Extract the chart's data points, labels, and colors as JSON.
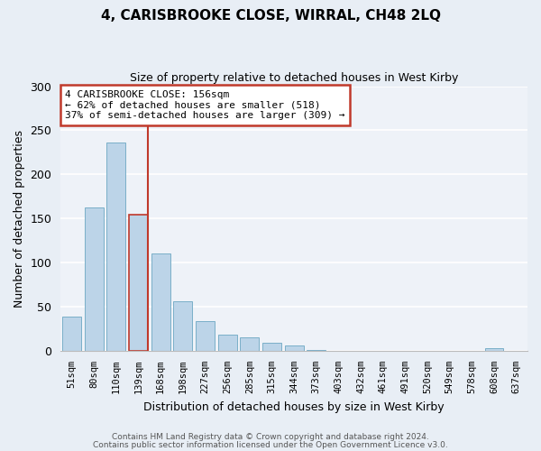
{
  "title": "4, CARISBROOKE CLOSE, WIRRAL, CH48 2LQ",
  "subtitle": "Size of property relative to detached houses in West Kirby",
  "bar_values": [
    39,
    163,
    236,
    154,
    110,
    56,
    34,
    18,
    15,
    9,
    6,
    1,
    0,
    0,
    0,
    0,
    0,
    0,
    0,
    3,
    0
  ],
  "categories": [
    "51sqm",
    "80sqm",
    "110sqm",
    "139sqm",
    "168sqm",
    "198sqm",
    "227sqm",
    "256sqm",
    "285sqm",
    "315sqm",
    "344sqm",
    "373sqm",
    "403sqm",
    "432sqm",
    "461sqm",
    "491sqm",
    "520sqm",
    "549sqm",
    "578sqm",
    "608sqm",
    "637sqm"
  ],
  "bar_color": "#bcd4e8",
  "bar_edge_color": "#7aafc8",
  "highlight_bar_index": 3,
  "highlight_bar_edge_color": "#c0392b",
  "ylabel": "Number of detached properties",
  "xlabel": "Distribution of detached houses by size in West Kirby",
  "ylim": [
    0,
    300
  ],
  "yticks": [
    0,
    50,
    100,
    150,
    200,
    250,
    300
  ],
  "annotation_title": "4 CARISBROOKE CLOSE: 156sqm",
  "annotation_line1": "← 62% of detached houses are smaller (518)",
  "annotation_line2": "37% of semi-detached houses are larger (309) →",
  "annotation_box_color": "#ffffff",
  "annotation_box_edge_color": "#c0392b",
  "vline_bar_index": 3,
  "footer1": "Contains HM Land Registry data © Crown copyright and database right 2024.",
  "footer2": "Contains public sector information licensed under the Open Government Licence v3.0.",
  "background_color": "#e8eef5",
  "plot_background_color": "#eef2f8"
}
